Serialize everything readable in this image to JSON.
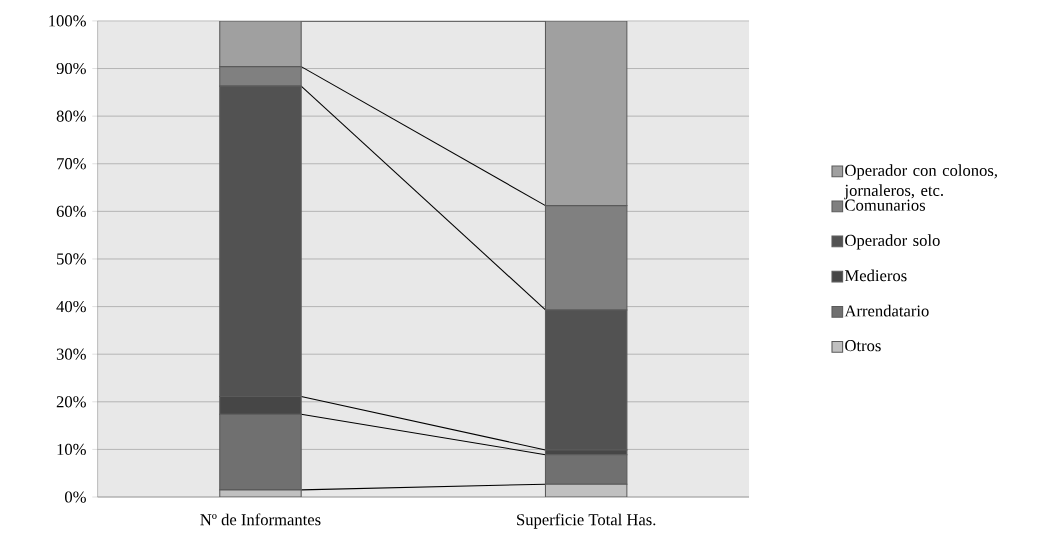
{
  "chart_data": {
    "type": "bar",
    "stacked": true,
    "categories": [
      "Nº de Informantes",
      "Superficie Total Has."
    ],
    "series": [
      {
        "name": "Otros",
        "color": "#c0c0c0",
        "values": [
          1.5,
          2.7
        ]
      },
      {
        "name": "Arrendatario",
        "color": "#707070",
        "values": [
          15.9,
          6.2
        ]
      },
      {
        "name": "Medieros",
        "color": "#464646",
        "values": [
          3.7,
          1.0
        ]
      },
      {
        "name": "Operador solo",
        "color": "#525252",
        "values": [
          65.2,
          29.4
        ]
      },
      {
        "name": "Comunarios",
        "color": "#808080",
        "values": [
          4.1,
          21.9
        ]
      },
      {
        "name": "Operador con colonos, jornaleros, etc.",
        "color": "#a0a0a0",
        "values": [
          9.6,
          38.8
        ]
      }
    ],
    "ylim": [
      0,
      100
    ],
    "yticks": [
      {
        "value": 0,
        "label": "0%"
      },
      {
        "value": 10,
        "label": "10%"
      },
      {
        "value": 20,
        "label": "20%"
      },
      {
        "value": 30,
        "label": "30%"
      },
      {
        "value": 40,
        "label": "40%"
      },
      {
        "value": 50,
        "label": "50%"
      },
      {
        "value": 60,
        "label": "60%"
      },
      {
        "value": 70,
        "label": "70%"
      },
      {
        "value": 80,
        "label": "80%"
      },
      {
        "value": 90,
        "label": "90%"
      },
      {
        "value": 100,
        "label": "100%"
      }
    ],
    "grid": "y",
    "legend": "right"
  }
}
